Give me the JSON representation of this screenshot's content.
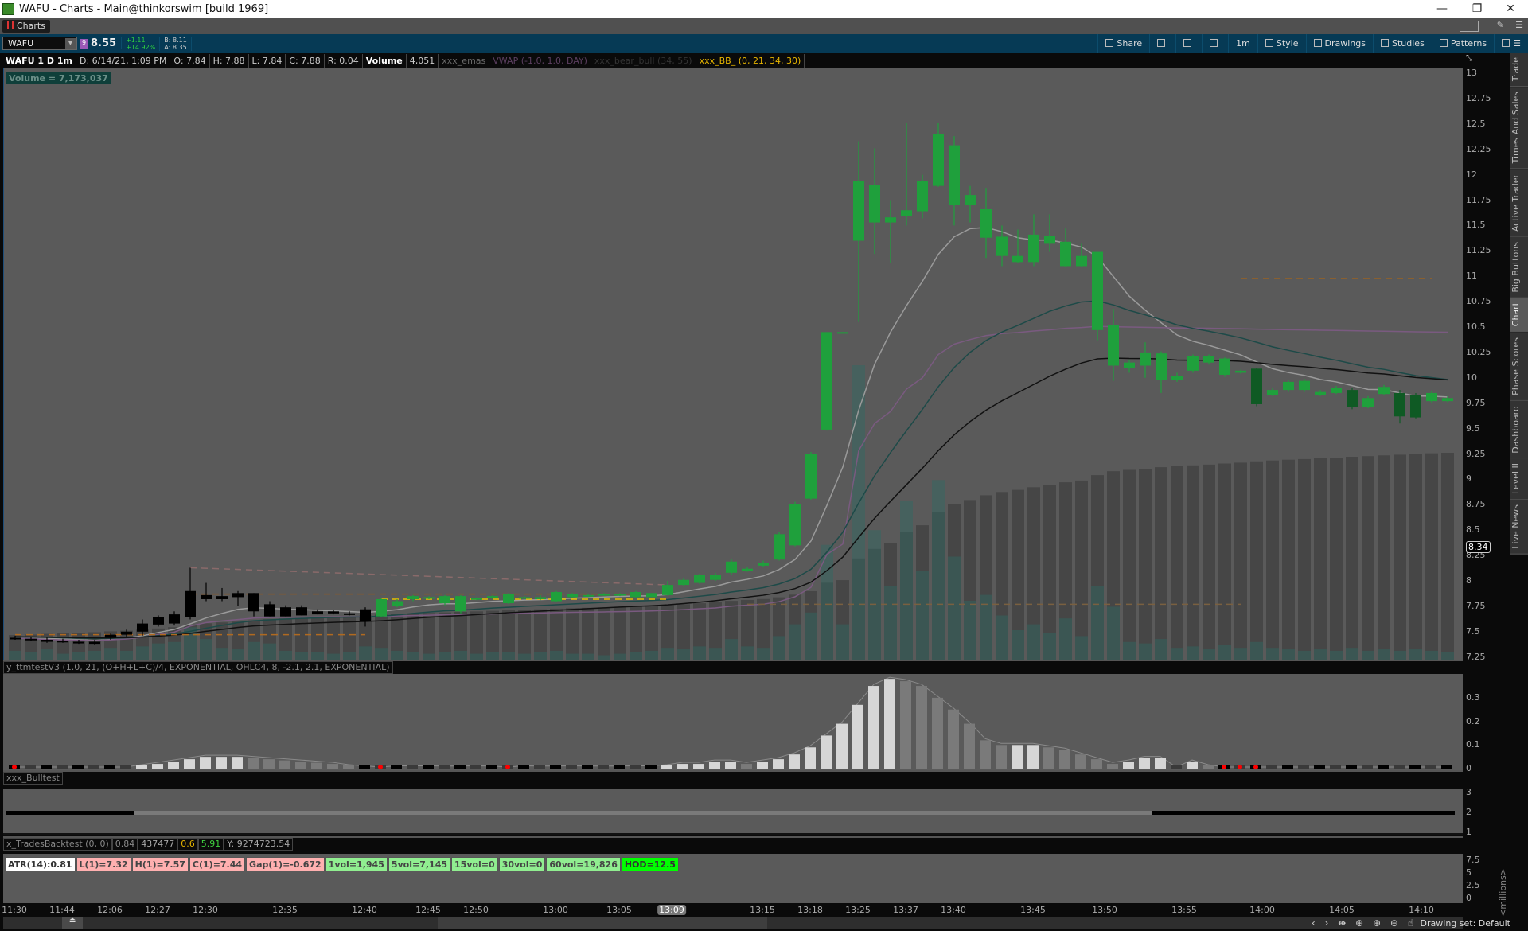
{
  "window": {
    "title": "WAFU - Charts -  Main@thinkorswim [build 1969]",
    "minimize": "—",
    "restore": "❐",
    "close": "✕"
  },
  "tabbar": {
    "tab": "Charts"
  },
  "toolbar": {
    "symbol": "WAFU",
    "last": "8.55",
    "change": "+1.11",
    "change_pct": "+14.92%",
    "bid": "B: 8.11",
    "ask": "A: 8.35",
    "buttons": [
      {
        "label": "Share",
        "icon": "share-icon"
      },
      {
        "label": "",
        "icon": "calendar-icon"
      },
      {
        "label": "",
        "icon": "flask-icon"
      },
      {
        "label": "",
        "icon": "gear-icon"
      },
      {
        "label": "1m",
        "icon": ""
      },
      {
        "label": "Style",
        "icon": "candles-icon"
      },
      {
        "label": "Drawings",
        "icon": "hand-icon"
      },
      {
        "label": "Studies",
        "icon": "flask-icon"
      },
      {
        "label": "Patterns",
        "icon": "patterns-icon"
      },
      {
        "label": "☰",
        "icon": "menu-icon"
      }
    ]
  },
  "infobar": {
    "title": "WAFU 1 D 1m",
    "date": "D: 6/14/21, 1:09 PM",
    "open": "O: 7.84",
    "high": "H: 7.88",
    "low": "L: 7.84",
    "close": "C: 7.88",
    "range": "R: 0.04",
    "volume_label": "Volume",
    "volume": "4,051",
    "studies": [
      {
        "label": "xxx_emas",
        "color": "#6a6a6a"
      },
      {
        "label": "VWAP (-1.0, 1.0, DAY)",
        "color": "#5c3f60"
      },
      {
        "label": "xxx_bear_bull (34, 55)",
        "color": "#333333"
      },
      {
        "label": "xxx_BB_ (0, 21, 34, 30)",
        "color": "#e8b600"
      }
    ]
  },
  "volume_readout": "Volume = 7,173,037",
  "price_axis": {
    "ticks": [
      "13",
      "12.75",
      "12.5",
      "12.25",
      "12",
      "11.75",
      "11.5",
      "11.25",
      "11",
      "10.75",
      "10.5",
      "10.25",
      "10",
      "9.75",
      "9.5",
      "9.25",
      "9",
      "8.75",
      "8.5",
      "8.25",
      "8",
      "7.75",
      "7.5",
      "7.25"
    ],
    "marker": "8.34"
  },
  "colors": {
    "up": "#1fa03c",
    "down": "#000000",
    "strong_down": "#0f5a24",
    "ema_fast": "#9a9a9a",
    "vwap": "#7a5a80",
    "ema_mid": "#1d4a48",
    "ema_slow": "#111111",
    "volume": "#2f6b63"
  },
  "chart_data": {
    "type": "candlestick",
    "ohlc": [
      [
        7.44,
        7.46,
        7.42,
        7.43,
        "k"
      ],
      [
        7.43,
        7.45,
        7.41,
        7.42,
        "k"
      ],
      [
        7.42,
        7.44,
        7.39,
        7.4,
        "k"
      ],
      [
        7.41,
        7.43,
        7.39,
        7.4,
        "k"
      ],
      [
        7.4,
        7.42,
        7.38,
        7.39,
        "k"
      ],
      [
        7.4,
        7.42,
        7.37,
        7.38,
        "k"
      ],
      [
        7.44,
        7.48,
        7.42,
        7.47,
        "k"
      ],
      [
        7.47,
        7.52,
        7.45,
        7.5,
        "k"
      ],
      [
        7.5,
        7.62,
        7.46,
        7.58,
        "k"
      ],
      [
        7.57,
        7.66,
        7.55,
        7.64,
        "k"
      ],
      [
        7.58,
        7.7,
        7.56,
        7.67,
        "k"
      ],
      [
        7.64,
        8.13,
        7.62,
        7.9,
        "k"
      ],
      [
        7.82,
        7.98,
        7.8,
        7.86,
        "k"
      ],
      [
        7.82,
        7.93,
        7.8,
        7.85,
        "k"
      ],
      [
        7.84,
        7.9,
        7.75,
        7.88,
        "k"
      ],
      [
        7.88,
        7.88,
        7.65,
        7.7,
        "k"
      ],
      [
        7.77,
        7.8,
        7.65,
        7.65,
        "k"
      ],
      [
        7.74,
        7.76,
        7.65,
        7.65,
        "k"
      ],
      [
        7.74,
        7.76,
        7.66,
        7.66,
        "k"
      ],
      [
        7.7,
        7.72,
        7.67,
        7.67,
        "k"
      ],
      [
        7.7,
        7.71,
        7.67,
        7.68,
        "k"
      ],
      [
        7.68,
        7.7,
        7.66,
        7.67,
        "k"
      ],
      [
        7.72,
        7.74,
        7.55,
        7.6,
        "k"
      ],
      [
        7.65,
        7.83,
        7.64,
        7.82,
        "g"
      ],
      [
        7.75,
        7.82,
        7.74,
        7.8,
        "g"
      ],
      [
        7.82,
        7.86,
        7.8,
        7.85,
        "g"
      ],
      [
        7.83,
        7.85,
        7.82,
        7.84,
        "g"
      ],
      [
        7.78,
        7.86,
        7.76,
        7.85,
        "g"
      ],
      [
        7.7,
        7.86,
        7.68,
        7.85,
        "g"
      ],
      [
        7.82,
        7.84,
        7.81,
        7.83,
        "g"
      ],
      [
        7.83,
        7.86,
        7.82,
        7.85,
        "g"
      ],
      [
        7.78,
        7.88,
        7.77,
        7.87,
        "g"
      ],
      [
        7.83,
        7.85,
        7.82,
        7.84,
        "g"
      ],
      [
        7.82,
        7.86,
        7.81,
        7.84,
        "g"
      ],
      [
        7.8,
        7.9,
        7.79,
        7.89,
        "g"
      ],
      [
        7.84,
        7.88,
        7.83,
        7.87,
        "g"
      ],
      [
        7.85,
        7.87,
        7.84,
        7.86,
        "g"
      ],
      [
        7.86,
        7.88,
        7.85,
        7.87,
        "g"
      ],
      [
        7.86,
        7.88,
        7.85,
        7.87,
        "g"
      ],
      [
        7.84,
        7.9,
        7.83,
        7.89,
        "g"
      ],
      [
        7.84,
        7.88,
        7.84,
        7.88,
        "g"
      ],
      [
        7.86,
        8.0,
        7.85,
        7.96,
        "g"
      ],
      [
        7.96,
        8.03,
        7.95,
        8.01,
        "g"
      ],
      [
        7.98,
        8.07,
        7.97,
        8.06,
        "g"
      ],
      [
        8.01,
        8.08,
        8.0,
        8.06,
        "g"
      ],
      [
        8.08,
        8.22,
        8.06,
        8.19,
        "g"
      ],
      [
        8.1,
        8.14,
        8.09,
        8.12,
        "g"
      ],
      [
        8.15,
        8.2,
        8.14,
        8.18,
        "g"
      ],
      [
        8.21,
        8.48,
        8.2,
        8.46,
        "g"
      ],
      [
        8.35,
        8.78,
        8.34,
        8.76,
        "g"
      ],
      [
        8.81,
        9.27,
        8.8,
        9.25,
        "g"
      ],
      [
        9.49,
        10.45,
        9.48,
        10.45,
        "g"
      ],
      [
        10.44,
        10.45,
        10.44,
        10.45,
        "g"
      ],
      [
        11.35,
        12.33,
        10.55,
        11.94,
        "g"
      ],
      [
        11.53,
        12.26,
        11.22,
        11.9,
        "g"
      ],
      [
        11.53,
        11.75,
        11.13,
        11.58,
        "g"
      ],
      [
        11.59,
        12.51,
        11.5,
        11.65,
        "g"
      ],
      [
        11.64,
        12.0,
        11.57,
        11.94,
        "g"
      ],
      [
        11.89,
        12.51,
        11.88,
        12.4,
        "g"
      ],
      [
        11.7,
        12.38,
        11.5,
        12.29,
        "g"
      ],
      [
        11.7,
        11.89,
        11.53,
        11.8,
        "g"
      ],
      [
        11.38,
        11.87,
        11.18,
        11.66,
        "g"
      ],
      [
        11.2,
        11.5,
        11.1,
        11.39,
        "g"
      ],
      [
        11.14,
        11.46,
        11.13,
        11.2,
        "g"
      ],
      [
        11.14,
        11.61,
        11.1,
        11.41,
        "g"
      ],
      [
        11.32,
        11.61,
        11.24,
        11.4,
        "g"
      ],
      [
        11.1,
        11.47,
        11.09,
        11.34,
        "g"
      ],
      [
        11.1,
        11.32,
        11.09,
        11.2,
        "g"
      ],
      [
        10.47,
        11.24,
        10.37,
        11.24,
        "g"
      ],
      [
        10.12,
        10.68,
        9.97,
        10.52,
        "g"
      ],
      [
        10.1,
        10.18,
        10.05,
        10.15,
        "g"
      ],
      [
        10.12,
        10.35,
        10.0,
        10.25,
        "g"
      ],
      [
        9.98,
        10.26,
        9.85,
        10.24,
        "g"
      ],
      [
        9.98,
        10.05,
        9.96,
        10.02,
        "g"
      ],
      [
        10.07,
        10.23,
        10.05,
        10.21,
        "g"
      ],
      [
        10.15,
        10.23,
        10.13,
        10.21,
        "g"
      ],
      [
        10.03,
        10.2,
        10.01,
        10.19,
        "g"
      ],
      [
        10.05,
        10.08,
        10.04,
        10.07,
        "g"
      ],
      [
        9.74,
        10.1,
        9.72,
        10.09,
        "d"
      ],
      [
        9.83,
        9.9,
        9.82,
        9.88,
        "g"
      ],
      [
        9.88,
        9.98,
        9.86,
        9.96,
        "g"
      ],
      [
        9.88,
        9.99,
        9.86,
        9.97,
        "g"
      ],
      [
        9.83,
        9.88,
        9.82,
        9.86,
        "g"
      ],
      [
        9.85,
        9.92,
        9.84,
        9.9,
        "g"
      ],
      [
        9.71,
        9.9,
        9.69,
        9.88,
        "d"
      ],
      [
        9.71,
        9.82,
        9.7,
        9.8,
        "g"
      ],
      [
        9.84,
        9.93,
        9.83,
        9.91,
        "g"
      ],
      [
        9.62,
        9.88,
        9.55,
        9.85,
        "d"
      ],
      [
        9.61,
        9.85,
        9.6,
        9.83,
        "d"
      ],
      [
        9.77,
        9.87,
        9.75,
        9.85,
        "g"
      ],
      [
        9.77,
        9.82,
        9.76,
        9.8,
        "g"
      ]
    ],
    "volume_thousands": [
      30,
      25,
      35,
      20,
      25,
      30,
      40,
      30,
      45,
      55,
      60,
      110,
      70,
      40,
      35,
      60,
      55,
      30,
      25,
      25,
      20,
      25,
      45,
      40,
      30,
      25,
      20,
      25,
      30,
      20,
      25,
      25,
      20,
      25,
      30,
      20,
      20,
      15,
      20,
      25,
      30,
      40,
      35,
      45,
      40,
      70,
      45,
      40,
      80,
      120,
      160,
      390,
      120,
      1000,
      440,
      250,
      540,
      300,
      610,
      350,
      200,
      220,
      150,
      100,
      120,
      90,
      140,
      80,
      250,
      180,
      60,
      55,
      70,
      40,
      45,
      35,
      50,
      40,
      60,
      40,
      35,
      30,
      35,
      30,
      40,
      30,
      35,
      30,
      35,
      30,
      25
    ],
    "xlabels": [
      "11:30",
      "11:44",
      "12:06",
      "12:27",
      "12:30",
      "12:35",
      "12:40",
      "12:45",
      "12:50",
      "13:00",
      "13:05",
      "13:09",
      "13:15",
      "13:18",
      "13:25",
      "13:37",
      "13:40",
      "13:45",
      "13:50",
      "13:55",
      "14:00",
      "14:05",
      "14:10"
    ],
    "ylim": [
      7.25,
      13.1
    ],
    "drawings": [
      {
        "type": "trendline",
        "style": "dashed",
        "color": "#8a6a6a",
        "from": [
          11,
          8.13
        ],
        "to": [
          41,
          7.96
        ]
      },
      {
        "type": "hline",
        "style": "dashed",
        "color": "#b06a20",
        "price": 7.47,
        "from": 0,
        "to": 22
      },
      {
        "type": "hline",
        "style": "dashed",
        "color": "#8a5a2a",
        "price": 7.87,
        "from": 11,
        "to": 40
      },
      {
        "type": "hline",
        "style": "dashed",
        "color": "#e8c000",
        "price": 7.82,
        "from": 23,
        "to": 41
      },
      {
        "type": "hline",
        "style": "dashed",
        "color": "#7a6040",
        "price": 7.77,
        "from": 46,
        "to": 77
      },
      {
        "type": "hline",
        "style": "dashed",
        "color": "#8a6030",
        "price": 10.98,
        "from": 77,
        "to": 89
      }
    ]
  },
  "oscillator": {
    "label": "y_ttmtestV3 (1.0, 21, (O+H+L+C)/4, EXPONENTIAL, OHLC4, 8, -2.1, 2.1, EXPONENTIAL)",
    "ticks": [
      "0.3",
      "0.2",
      "0.1",
      "0"
    ],
    "values": [
      0,
      0,
      0,
      0,
      0,
      0,
      0,
      0,
      0.01,
      0.02,
      0.03,
      0.04,
      0.05,
      0.05,
      0.05,
      0.045,
      0.04,
      0.035,
      0.03,
      0.025,
      0.02,
      0.01,
      0.005,
      0,
      0.005,
      0.005,
      0.005,
      0.004,
      0.004,
      0.005,
      0.004,
      0,
      0.005,
      0.004,
      0.004,
      0.005,
      0.004,
      0.004,
      0.004,
      0.005,
      0.005,
      0.01,
      0.02,
      0.02,
      0.03,
      0.03,
      0.02,
      0.03,
      0.04,
      0.06,
      0.09,
      0.14,
      0.19,
      0.27,
      0.35,
      0.38,
      0.37,
      0.35,
      0.3,
      0.25,
      0.19,
      0.12,
      0.1,
      0.1,
      0.1,
      0.09,
      0.08,
      0.06,
      0.04,
      0.02,
      0.03,
      0.045,
      0.045,
      0,
      0.03,
      0.01,
      0,
      0,
      0,
      0,
      0,
      0,
      0,
      0,
      0,
      0,
      0,
      0,
      0,
      0,
      0
    ],
    "squeeze_dots": [
      0,
      23,
      31,
      76,
      77,
      78
    ]
  },
  "bulltest": {
    "label": "xxx_Bulltest",
    "ticks": [
      "3",
      "2",
      "1"
    ],
    "value": 2,
    "black_ranges": [
      [
        0,
        7
      ],
      [
        72,
        90
      ]
    ]
  },
  "backtest": {
    "label": "x_TradesBacktest (0, 0)",
    "values": [
      {
        "v": "0.84",
        "color": "#888"
      },
      {
        "v": "437477",
        "color": "#aaa"
      },
      {
        "v": "0.6",
        "color": "#e8b600"
      },
      {
        "v": "5.91",
        "color": "#3fd13f"
      },
      {
        "v": "Y: 9274723.54",
        "color": "#aaa"
      }
    ],
    "badges": [
      {
        "text": "ATR(14):0.81",
        "bg": "#ffffff",
        "fg": "#333"
      },
      {
        "text": "L(1)=7.32",
        "bg": "#ffb0b0",
        "fg": "#444"
      },
      {
        "text": "H(1)=7.57",
        "bg": "#ffb0b0",
        "fg": "#444"
      },
      {
        "text": "C(1)=7.44",
        "bg": "#ffb0b0",
        "fg": "#444"
      },
      {
        "text": "Gap(1)=-0.672",
        "bg": "#ffb0b0",
        "fg": "#444"
      },
      {
        "text": "1vol=1,945",
        "bg": "#90ee90",
        "fg": "#444"
      },
      {
        "text": "5vol=7,145",
        "bg": "#90ee90",
        "fg": "#444"
      },
      {
        "text": "15vol=0",
        "bg": "#90ee90",
        "fg": "#444"
      },
      {
        "text": "30vol=0",
        "bg": "#90ee90",
        "fg": "#444"
      },
      {
        "text": "60vol=19,826",
        "bg": "#90ee90",
        "fg": "#444"
      },
      {
        "text": "HOD=12.5",
        "bg": "#00ff00",
        "fg": "#333"
      }
    ],
    "ticks": [
      "7.5",
      "5",
      "2.5",
      "0"
    ],
    "unit": "<millions>"
  },
  "sidetabs": [
    "Trade",
    "Times And Sales",
    "Active Trader",
    "Big Buttons",
    "Chart",
    "Phase Scores",
    "Dashboard",
    "Level II",
    "Live News"
  ],
  "active_sidetab": "Chart",
  "statusbar": {
    "drawing_set": "Drawing set: Default",
    "nav_icons": "‹ › ⇹ ⊕ ⊕ ⊖ ☝"
  }
}
